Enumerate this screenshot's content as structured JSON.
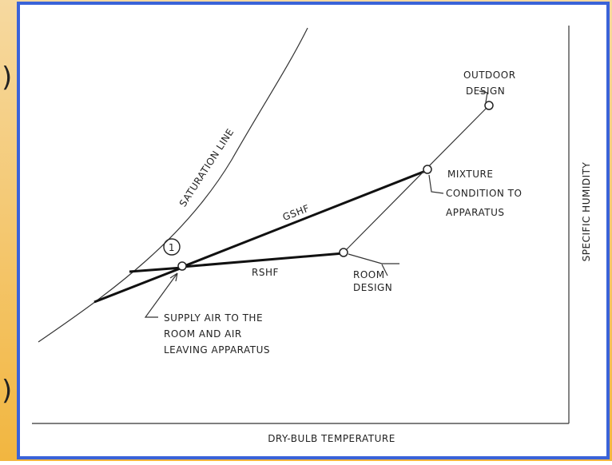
{
  "sidebar_fragments": [
    ")",
    ")"
  ],
  "diagram": {
    "curve_label": "SATURATION LINE",
    "line_labels": [
      "GSHF",
      "RSHF"
    ],
    "point_marker": "1",
    "points": {
      "outdoor": [
        "OUTDOOR",
        "DESIGN"
      ],
      "mixture": [
        "MIXTURE",
        "CONDITION TO",
        "APPARATUS"
      ],
      "room": [
        "ROOM",
        "DESIGN"
      ],
      "supply": [
        "SUPPLY AIR TO THE",
        "ROOM AND AIR",
        "LEAVING APPARATUS"
      ]
    },
    "x_axis_label": "DRY-BULB TEMPERATURE",
    "y_axis_label": "SPECIFIC HUMIDITY"
  }
}
